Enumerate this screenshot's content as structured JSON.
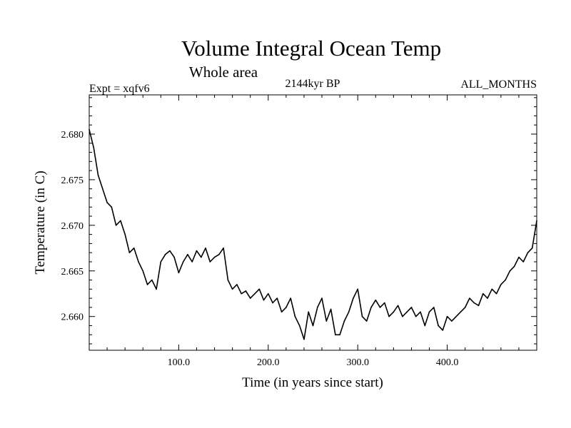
{
  "chart_data": {
    "type": "line",
    "title": "Volume Integral Ocean Temp",
    "subtitle": "Whole area",
    "expt_label": "Expt = xqfv6",
    "period_label": "2144kyr BP",
    "months_label": "ALL_MONTHS",
    "xlabel": "Time (in years since start)",
    "ylabel": "Temperature (in C)",
    "xlim": [
      0,
      500
    ],
    "ylim": [
      2.6563,
      2.6843
    ],
    "grid": false,
    "x_ticks": [
      {
        "value": 100,
        "label": "100.0"
      },
      {
        "value": 200,
        "label": "200.0"
      },
      {
        "value": 300,
        "label": "300.0"
      },
      {
        "value": 400,
        "label": "400.0"
      }
    ],
    "y_ticks": [
      {
        "value": 2.66,
        "label": "2.660"
      },
      {
        "value": 2.665,
        "label": "2.665"
      },
      {
        "value": 2.67,
        "label": "2.670"
      },
      {
        "value": 2.675,
        "label": "2.675"
      },
      {
        "value": 2.68,
        "label": "2.680"
      }
    ],
    "series": [
      {
        "name": "Volume Integral Ocean Temp",
        "color": "#000000",
        "x": [
          0,
          5,
          10,
          15,
          20,
          25,
          30,
          35,
          40,
          45,
          50,
          55,
          60,
          65,
          70,
          75,
          80,
          85,
          90,
          95,
          100,
          105,
          110,
          115,
          120,
          125,
          130,
          135,
          140,
          145,
          150,
          155,
          160,
          165,
          170,
          175,
          180,
          185,
          190,
          195,
          200,
          205,
          210,
          215,
          220,
          225,
          230,
          235,
          240,
          245,
          250,
          255,
          260,
          265,
          270,
          275,
          280,
          285,
          290,
          295,
          300,
          305,
          310,
          315,
          320,
          325,
          330,
          335,
          340,
          345,
          350,
          355,
          360,
          365,
          370,
          375,
          380,
          385,
          390,
          395,
          400,
          405,
          410,
          415,
          420,
          425,
          430,
          435,
          440,
          445,
          450,
          455,
          460,
          465,
          470,
          475,
          480,
          485,
          490,
          495,
          500
        ],
        "values": [
          2.6805,
          2.6785,
          2.6755,
          2.674,
          2.6725,
          2.672,
          2.67,
          2.6705,
          2.669,
          2.667,
          2.6675,
          2.666,
          2.665,
          2.6635,
          2.664,
          2.663,
          2.666,
          2.6668,
          2.6672,
          2.6665,
          2.6648,
          2.666,
          2.6668,
          2.666,
          2.6672,
          2.6665,
          2.6675,
          2.666,
          2.6665,
          2.6668,
          2.6675,
          2.664,
          2.663,
          2.6635,
          2.6625,
          2.6628,
          2.662,
          2.6625,
          2.663,
          2.6618,
          2.6625,
          2.6615,
          2.662,
          2.6605,
          2.661,
          2.662,
          2.66,
          2.659,
          2.6575,
          2.6605,
          2.659,
          2.661,
          2.662,
          2.6595,
          2.6608,
          2.658,
          2.658,
          2.6595,
          2.6605,
          2.662,
          2.663,
          2.66,
          2.6595,
          2.661,
          2.6618,
          2.661,
          2.6615,
          2.66,
          2.6605,
          2.6612,
          2.66,
          2.6605,
          2.661,
          2.66,
          2.6605,
          2.659,
          2.6605,
          2.661,
          2.659,
          2.6585,
          2.66,
          2.6595,
          2.66,
          2.6605,
          2.661,
          2.662,
          2.6615,
          2.6612,
          2.6625,
          2.662,
          2.663,
          2.6625,
          2.6635,
          2.664,
          2.665,
          2.6655,
          2.6665,
          2.666,
          2.667,
          2.6675,
          2.6705
        ]
      }
    ]
  }
}
